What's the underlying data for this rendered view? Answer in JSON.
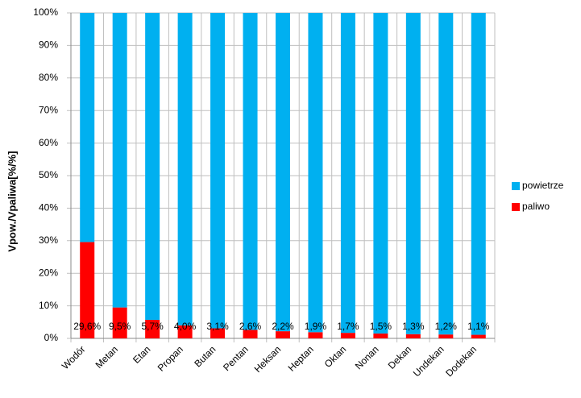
{
  "chart_data": {
    "type": "stacked_bar",
    "y_label": "Vpow./Vpaliwa[%/%]",
    "categories": [
      "Wodór",
      "Metan",
      "Etan",
      "Propan",
      "Butan",
      "Pentan",
      "Heksan",
      "Heptan",
      "Oktan",
      "Nonan",
      "Dekan",
      "Undekan",
      "Dodekan"
    ],
    "series": [
      {
        "name": "paliwo",
        "color": "#ff0000",
        "values": [
          29.6,
          9.5,
          5.7,
          4.0,
          3.1,
          2.6,
          2.2,
          1.9,
          1.7,
          1.5,
          1.3,
          1.2,
          1.1
        ],
        "value_labels": [
          "29,6%",
          "9,5%",
          "5,7%",
          "4,0%",
          "3,1%",
          "2,6%",
          "2,2%",
          "1,9%",
          "1,7%",
          "1,5%",
          "1,3%",
          "1,2%",
          "1,1%"
        ]
      },
      {
        "name": "powietrze",
        "color": "#00b0f0",
        "values": [
          70.4,
          90.5,
          94.3,
          96.0,
          96.9,
          97.4,
          97.8,
          98.1,
          98.3,
          98.5,
          98.7,
          98.8,
          98.9
        ]
      }
    ],
    "ylim": [
      0,
      100
    ],
    "yticks": [
      {
        "value": 0,
        "label": "0%"
      },
      {
        "value": 10,
        "label": "10%"
      },
      {
        "value": 20,
        "label": "20%"
      },
      {
        "value": 30,
        "label": "30%"
      },
      {
        "value": 40,
        "label": "40%"
      },
      {
        "value": 50,
        "label": "50%"
      },
      {
        "value": 60,
        "label": "60%"
      },
      {
        "value": 70,
        "label": "70%"
      },
      {
        "value": 80,
        "label": "80%"
      },
      {
        "value": 90,
        "label": "90%"
      },
      {
        "value": 100,
        "label": "100%"
      }
    ],
    "grid": true
  }
}
